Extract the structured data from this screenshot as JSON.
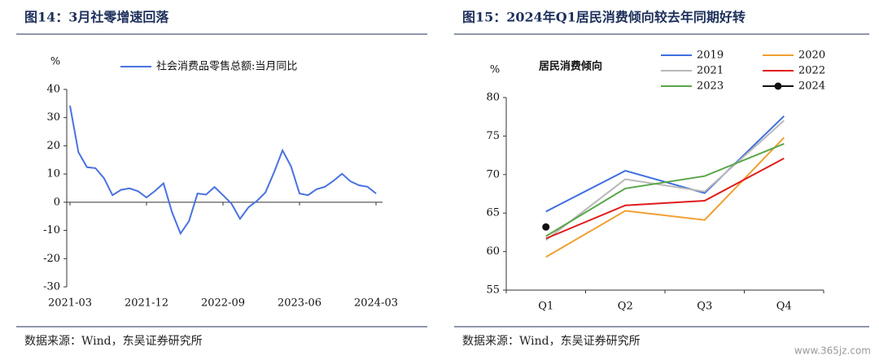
{
  "chart_data": [
    {
      "type": "line",
      "title": "图14：3月社零增速回落",
      "source": "数据来源：Wind，东吴证券研究所",
      "ylabel": "%",
      "categories": [
        "2021-03",
        null,
        null,
        null,
        null,
        null,
        null,
        null,
        null,
        "2021-12",
        null,
        null,
        null,
        null,
        null,
        null,
        null,
        null,
        "2022-09",
        null,
        null,
        null,
        null,
        null,
        null,
        null,
        null,
        "2023-06",
        null,
        null,
        null,
        null,
        null,
        null,
        null,
        null,
        "2024-03"
      ],
      "series": [
        {
          "name": "社会消费品零售总额:当月同比",
          "color": "#4a72e0",
          "values": [
            34.2,
            17.7,
            12.4,
            12.1,
            8.5,
            2.5,
            4.4,
            4.9,
            3.9,
            1.7,
            4.0,
            6.7,
            -3.5,
            -11.1,
            -6.7,
            3.1,
            2.7,
            5.4,
            2.5,
            -0.5,
            -5.9,
            -1.8,
            0.5,
            3.5,
            10.6,
            18.4,
            12.7,
            3.1,
            2.5,
            4.6,
            5.5,
            7.6,
            10.1,
            7.4,
            6.0,
            5.5,
            3.1
          ]
        }
      ],
      "ylim": [
        -30,
        40
      ],
      "yticks": [
        -30,
        -20,
        -10,
        0,
        10,
        20,
        30,
        40
      ]
    },
    {
      "type": "line",
      "title": "图15：2024年Q1居民消费倾向较去年同期好转",
      "source": "数据来源：Wind，东吴证券研究所",
      "ylabel": "%",
      "subtitle": "居民消费倾向",
      "categories": [
        "Q1",
        "Q2",
        "Q3",
        "Q4"
      ],
      "series": [
        {
          "name": "2019",
          "color": "#3e6fe0",
          "values": [
            65.2,
            70.5,
            67.6,
            77.6
          ]
        },
        {
          "name": "2020",
          "color": "#f0a030",
          "values": [
            59.3,
            65.3,
            64.1,
            74.8
          ]
        },
        {
          "name": "2021",
          "color": "#b8b8b8",
          "values": [
            61.5,
            69.4,
            67.8,
            77.0
          ]
        },
        {
          "name": "2022",
          "color": "#e01c1c",
          "values": [
            61.7,
            66.0,
            66.6,
            72.1
          ]
        },
        {
          "name": "2023",
          "color": "#5aa64a",
          "values": [
            62.0,
            68.2,
            69.8,
            74.0
          ]
        },
        {
          "name": "2024",
          "color": "#111111",
          "marker": true,
          "values": [
            63.2,
            null,
            null,
            null
          ]
        }
      ],
      "ylim": [
        55,
        80
      ],
      "yticks": [
        55,
        60,
        65,
        70,
        75,
        80
      ]
    }
  ],
  "watermark": "www.365jz.com"
}
